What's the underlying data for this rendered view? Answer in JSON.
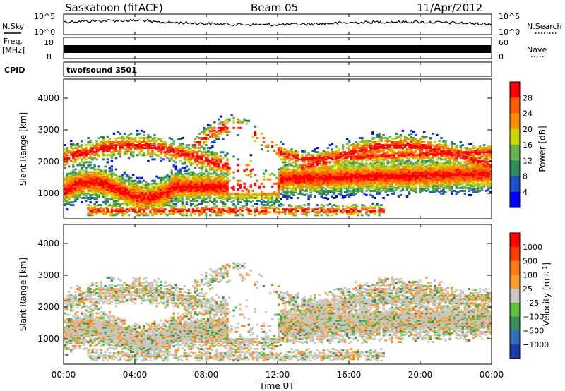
{
  "header": {
    "station": "Saskatoon (fitACF)",
    "beam": "Beam 05",
    "date": "11/Apr/2012"
  },
  "chart_data": [
    {
      "type": "line",
      "panel": "noise",
      "left_label": "N.Sky",
      "right_label": "N.Search",
      "left_ticks": [
        "10^5",
        "10^0"
      ],
      "right_ticks": [
        "10^5",
        "10^0"
      ]
    },
    {
      "type": "line",
      "panel": "frequency",
      "left_label_line1": "Freq.",
      "left_label_line2": "[MHz]",
      "right_label": "Nave",
      "left_ticks": [
        "18",
        "8"
      ],
      "right_ticks": [
        "60",
        "0"
      ]
    },
    {
      "type": "table",
      "panel": "cpid",
      "label": "CPID",
      "value": "twofsound 3501"
    },
    {
      "type": "heatmap",
      "panel": "power",
      "ylabel": "Slant Range [km]",
      "ylim": [
        200,
        4600
      ],
      "y_ticks": [
        1000,
        2000,
        3000,
        4000
      ],
      "colorbar_label": "Power [dB]",
      "colorbar_ticks": [
        "28",
        "24",
        "20",
        "16",
        "12",
        "8",
        "4"
      ],
      "colors": [
        "#0000ff",
        "#1e4fc8",
        "#2e8b57",
        "#6ab04c",
        "#c8d400",
        "#ff8c00",
        "#ff5a00",
        "#ff0000"
      ]
    },
    {
      "type": "heatmap",
      "panel": "velocity",
      "ylabel": "Slant Range [km]",
      "ylim": [
        200,
        4600
      ],
      "y_ticks": [
        1000,
        2000,
        3000,
        4000
      ],
      "colorbar_label": "Velocity [m s",
      "colorbar_label_sup": "-1",
      "colorbar_label_end": "]",
      "colorbar_ticks": [
        "1000",
        "500",
        "100",
        "25",
        "−25",
        "−100",
        "−500",
        "−1000"
      ],
      "colors": [
        "#1a3aa8",
        "#2e6fbe",
        "#3a8a5a",
        "#5cbf3c",
        "#c8c8c0",
        "#ff9a30",
        "#ff7a10",
        "#ff3a00",
        "#ff0000"
      ]
    }
  ],
  "x_axis": {
    "xlabel": "Time UT",
    "ticks": [
      "00:00",
      "04:00",
      "08:00",
      "12:00",
      "16:00",
      "20:00",
      "00:00"
    ]
  }
}
